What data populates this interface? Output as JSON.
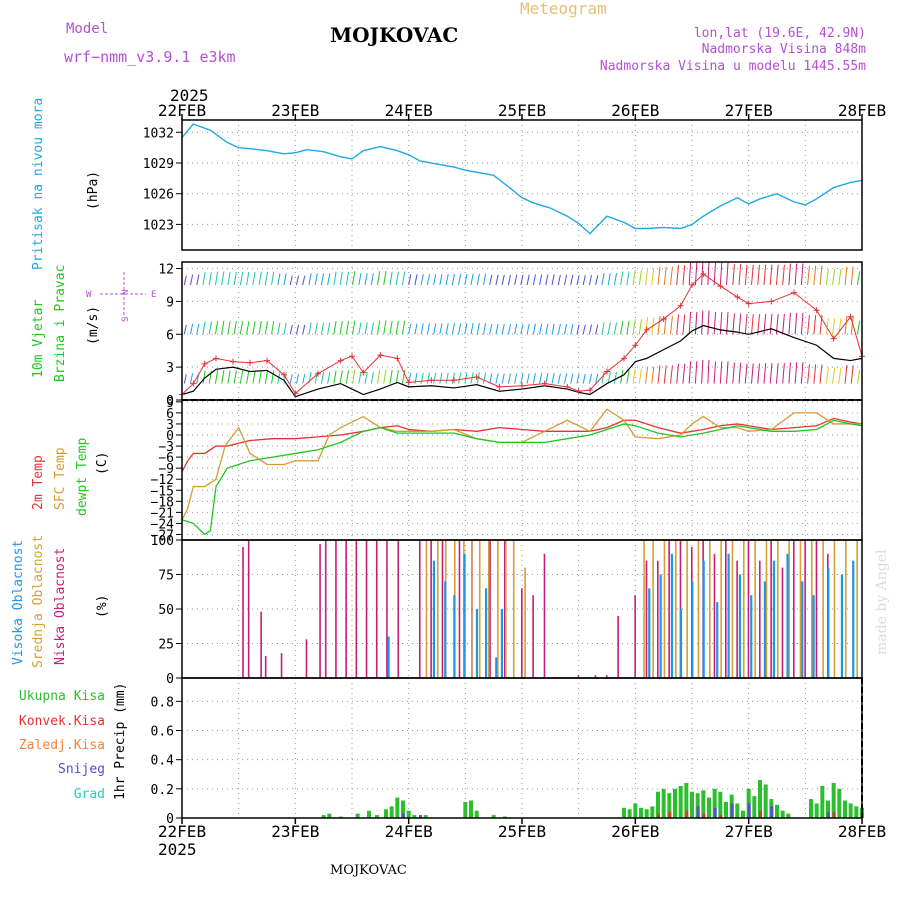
{
  "header": {
    "model_label": "Model",
    "model_name": "wrf−nmm_v3.9.1  e3km",
    "station": "MOJKOVAC",
    "meteogram": "Meteogram",
    "lonlat": "lon,lat (19.6E, 42.9N)",
    "altitude": "Nadmorska Visina 848m",
    "model_altitude": "Nadmorska Visina u modelu 1445.55m",
    "year_top": "2025",
    "year_bottom": "2025",
    "footer_station": "MOJKOVAC",
    "credit": "made by Angel"
  },
  "colors": {
    "pressure": "#1eaae6",
    "temp2m": "#e63232",
    "sfc": "#d79b32",
    "dewpt": "#1ec81e",
    "high_cloud": "#1e96e6",
    "mid_cloud": "#d7a032",
    "low_cloud": "#c81e78",
    "total_precip": "#2dbe2d",
    "conv_precip": "#e63232",
    "frozen_precip": "#f0823c",
    "snow": "#5050d2",
    "hail": "#28c8c8",
    "wind_label": "#1ec81e",
    "compass": "#b450d2"
  },
  "chart_data": [
    {
      "id": "pressure",
      "type": "line",
      "title": "Pritisak na nivou mora",
      "ylabel": "(hPa)",
      "yticks": [
        1023,
        1026,
        1029,
        1032
      ],
      "ylim": [
        1020.5,
        1033.2
      ],
      "x_unit": "days from 22FEB 00Z",
      "x": [
        0,
        0.1,
        0.25,
        0.4,
        0.5,
        0.6,
        0.75,
        0.9,
        1.0,
        1.1,
        1.25,
        1.4,
        1.5,
        1.6,
        1.75,
        1.9,
        2.0,
        2.1,
        2.25,
        2.4,
        2.5,
        2.6,
        2.75,
        2.9,
        3.0,
        3.1,
        3.25,
        3.4,
        3.5,
        3.6,
        3.75,
        3.9,
        4.0,
        4.1,
        4.25,
        4.4,
        4.5,
        4.6,
        4.75,
        4.9,
        5.0,
        5.1,
        5.25,
        5.4,
        5.5,
        5.6,
        5.75,
        5.9,
        6.0
      ],
      "values": [
        1031.5,
        1032.8,
        1032.2,
        1031.0,
        1030.5,
        1030.4,
        1030.2,
        1029.9,
        1030.0,
        1030.3,
        1030.1,
        1029.6,
        1029.4,
        1030.2,
        1030.6,
        1030.2,
        1029.8,
        1029.2,
        1028.9,
        1028.6,
        1028.3,
        1028.1,
        1027.8,
        1026.5,
        1025.6,
        1025.1,
        1024.6,
        1023.8,
        1023.1,
        1022.1,
        1023.8,
        1023.2,
        1022.6,
        1022.6,
        1022.7,
        1022.6,
        1023.0,
        1023.8,
        1024.8,
        1025.6,
        1025.0,
        1025.5,
        1026.0,
        1025.2,
        1024.9,
        1025.5,
        1026.6,
        1027.1,
        1027.3
      ]
    },
    {
      "id": "wind",
      "type": "line",
      "title": "10m Vjetar Brzina i Pravac",
      "ylabel": "(m/s)",
      "yticks": [
        0,
        3,
        6,
        9,
        12
      ],
      "ylim": [
        0,
        12.6
      ],
      "compass": {
        "n": "N",
        "s": "S",
        "e": "E",
        "w": "W"
      },
      "series": [
        {
          "name": "wind speed",
          "x": [
            0,
            0.1,
            0.2,
            0.3,
            0.45,
            0.6,
            0.75,
            0.9,
            1.0,
            1.2,
            1.4,
            1.5,
            1.6,
            1.75,
            1.9,
            2.0,
            2.2,
            2.4,
            2.6,
            2.8,
            3.0,
            3.2,
            3.4,
            3.5,
            3.6,
            3.75,
            3.9,
            4.0,
            4.1,
            4.25,
            4.4,
            4.5,
            4.6,
            4.75,
            4.9,
            5.0,
            5.2,
            5.4,
            5.6,
            5.75,
            5.9,
            6.0
          ],
          "values": [
            0.5,
            0.8,
            2.0,
            2.8,
            3.0,
            2.6,
            2.7,
            1.8,
            0.3,
            1.0,
            1.5,
            1.0,
            0.5,
            1.0,
            1.6,
            1.2,
            1.3,
            1.1,
            1.4,
            0.8,
            1.0,
            1.3,
            1.0,
            0.7,
            0.5,
            1.5,
            2.3,
            3.5,
            3.8,
            4.6,
            5.4,
            6.3,
            6.8,
            6.4,
            6.2,
            6.0,
            6.5,
            5.7,
            5.0,
            3.8,
            3.6,
            3.8
          ]
        },
        {
          "name": "wind gust",
          "x": [
            0,
            0.1,
            0.2,
            0.3,
            0.45,
            0.6,
            0.75,
            0.9,
            1.0,
            1.2,
            1.4,
            1.5,
            1.6,
            1.75,
            1.9,
            2.0,
            2.2,
            2.4,
            2.6,
            2.8,
            3.0,
            3.2,
            3.4,
            3.5,
            3.6,
            3.75,
            3.9,
            4.0,
            4.1,
            4.25,
            4.4,
            4.5,
            4.6,
            4.75,
            4.9,
            5.0,
            5.2,
            5.4,
            5.6,
            5.75,
            5.9,
            6.0
          ],
          "values": [
            0.5,
            1.5,
            3.3,
            3.8,
            3.5,
            3.4,
            3.6,
            2.3,
            0.6,
            2.4,
            3.6,
            4.0,
            2.5,
            4.1,
            3.8,
            1.6,
            1.8,
            1.8,
            2.1,
            1.2,
            1.3,
            1.5,
            1.2,
            0.8,
            0.9,
            2.6,
            3.8,
            5.0,
            6.4,
            7.4,
            8.6,
            10.5,
            11.5,
            10.4,
            9.4,
            8.8,
            9.0,
            9.8,
            8.2,
            5.6,
            7.6,
            4.0
          ]
        }
      ]
    },
    {
      "id": "temperature",
      "type": "line",
      "title": "2m Temp / SFC Temp / dewpt Temp",
      "ylabel": "(C)",
      "yticks": [
        -27,
        -24,
        -21,
        -18,
        -15,
        -12,
        -9,
        -6,
        -3,
        0,
        3,
        6,
        9
      ],
      "ylim": [
        -28.5,
        9.5
      ],
      "series": [
        {
          "name": "2m Temp",
          "x": [
            0,
            0.05,
            0.1,
            0.2,
            0.3,
            0.4,
            0.6,
            0.8,
            1.0,
            1.2,
            1.4,
            1.6,
            1.75,
            1.9,
            2.0,
            2.2,
            2.4,
            2.6,
            2.8,
            3.0,
            3.2,
            3.4,
            3.6,
            3.75,
            3.9,
            4.0,
            4.2,
            4.4,
            4.6,
            4.75,
            4.9,
            5.0,
            5.2,
            5.4,
            5.6,
            5.75,
            5.9,
            6.0
          ],
          "values": [
            -10,
            -7,
            -5,
            -5,
            -3,
            -3,
            -1.5,
            -1,
            -1,
            -0.5,
            0,
            1,
            2,
            2.5,
            1.5,
            1,
            1.5,
            1,
            2,
            1.5,
            1,
            1,
            1,
            2,
            4,
            4,
            2,
            0.5,
            1.5,
            2.5,
            3,
            2.5,
            1.5,
            2,
            2.5,
            4.5,
            3.5,
            3
          ]
        },
        {
          "name": "SFC Temp",
          "x": [
            0,
            0.05,
            0.1,
            0.2,
            0.3,
            0.38,
            0.5,
            0.6,
            0.75,
            0.9,
            1.0,
            1.2,
            1.3,
            1.4,
            1.6,
            1.75,
            1.9,
            2.0,
            2.2,
            2.4,
            2.6,
            2.8,
            3.0,
            3.2,
            3.4,
            3.6,
            3.75,
            3.9,
            4.0,
            4.2,
            4.4,
            4.5,
            4.6,
            4.75,
            4.9,
            5.0,
            5.2,
            5.4,
            5.6,
            5.75,
            5.9,
            6.0
          ],
          "values": [
            -23,
            -20,
            -14,
            -14,
            -12,
            -3,
            2,
            -5,
            -8,
            -8,
            -7,
            -7,
            0,
            2,
            5,
            2,
            1,
            1,
            1,
            1.5,
            -1,
            -2,
            -2,
            1,
            4,
            1,
            7,
            4,
            -0.5,
            -1,
            0,
            3,
            5,
            2,
            2,
            1,
            1.5,
            6,
            6,
            3,
            3,
            3
          ]
        },
        {
          "name": "dewpt Temp",
          "x": [
            0,
            0.1,
            0.2,
            0.25,
            0.3,
            0.4,
            0.6,
            0.8,
            1.0,
            1.2,
            1.4,
            1.6,
            1.75,
            1.9,
            2.0,
            2.2,
            2.4,
            2.6,
            2.8,
            3.0,
            3.2,
            3.4,
            3.6,
            3.75,
            3.9,
            4.0,
            4.2,
            4.4,
            4.6,
            4.75,
            4.9,
            5.0,
            5.2,
            5.4,
            5.6,
            5.75,
            5.9,
            6.0
          ],
          "values": [
            -23,
            -24,
            -27,
            -26,
            -14,
            -9,
            -7,
            -6,
            -5,
            -4,
            -2,
            1,
            2,
            0.5,
            0.5,
            0.5,
            0.5,
            -1,
            -2,
            -2,
            -2,
            -1,
            0,
            1.5,
            3,
            2.5,
            0.5,
            -0.5,
            0.5,
            1.5,
            2.5,
            2,
            1,
            1,
            1.5,
            4,
            3,
            2.5
          ]
        }
      ]
    },
    {
      "id": "clouds",
      "type": "bar",
      "title": "Visoka Oblacnost / Srednja Oblacnost / Niska Oblacnost",
      "ylabel": "(%)",
      "yticks": [
        0,
        25,
        50,
        75,
        100
      ],
      "ylim": [
        0,
        100
      ],
      "series": [
        {
          "name": "Niska Oblacnost",
          "x": [
            0.54,
            0.59,
            0.7,
            0.74,
            0.88,
            1.1,
            1.22,
            1.27,
            1.36,
            1.45,
            1.54,
            1.63,
            1.72,
            1.81,
            1.91,
            2.1,
            2.2,
            2.3,
            2.45,
            2.56,
            2.72,
            2.85,
            3.0,
            3.1,
            3.2,
            3.5,
            3.65,
            3.75,
            3.85,
            4.0,
            4.1,
            4.2,
            4.3,
            4.4,
            4.5,
            4.6,
            4.7,
            4.8,
            4.9,
            5.0,
            5.1,
            5.2,
            5.3,
            5.4,
            5.5,
            5.6,
            5.7
          ],
          "values": [
            95,
            100,
            48,
            16,
            18,
            28,
            97,
            100,
            100,
            100,
            100,
            100,
            100,
            100,
            100,
            100,
            100,
            100,
            100,
            100,
            100,
            100,
            65,
            60,
            90,
            2,
            2,
            2,
            45,
            60,
            85,
            85,
            100,
            100,
            95,
            100,
            90,
            100,
            85,
            100,
            85,
            100,
            80,
            100,
            100,
            100,
            90
          ]
        },
        {
          "name": "Srednja Oblacnost",
          "x": [
            2.15,
            2.25,
            2.32,
            2.4,
            2.48,
            2.55,
            2.62,
            2.7,
            2.78,
            2.85,
            2.92,
            3.02,
            4.07,
            4.15,
            4.25,
            4.35,
            4.45,
            4.55,
            4.65,
            4.75,
            4.85,
            4.95,
            5.05,
            5.15,
            5.25,
            5.35,
            5.45,
            5.55,
            5.65,
            5.75,
            5.85,
            5.95
          ],
          "values": [
            100,
            100,
            100,
            100,
            100,
            100,
            100,
            100,
            100,
            100,
            100,
            80,
            100,
            100,
            100,
            100,
            100,
            100,
            100,
            100,
            100,
            100,
            100,
            100,
            100,
            100,
            100,
            100,
            100,
            100,
            100,
            100
          ]
        },
        {
          "name": "Visoka Oblacnost",
          "x": [
            1.8,
            2.2,
            2.3,
            2.38,
            2.47,
            2.58,
            2.66,
            2.75,
            2.8,
            4.1,
            4.2,
            4.3,
            4.38,
            4.48,
            4.58,
            4.7,
            4.8,
            4.9,
            5.0,
            5.12,
            5.2,
            5.32,
            5.45,
            5.55,
            5.68,
            5.8,
            5.9
          ],
          "values": [
            30,
            85,
            70,
            60,
            90,
            50,
            65,
            15,
            50,
            65,
            75,
            90,
            50,
            70,
            85,
            55,
            90,
            75,
            60,
            70,
            85,
            90,
            70,
            60,
            80,
            75,
            85
          ]
        }
      ]
    },
    {
      "id": "precip",
      "type": "bar",
      "title": "1hr Precip",
      "ylabel": "1hr Precip (mm)",
      "yticks": [
        0,
        0.2,
        0.4,
        0.6,
        0.8
      ],
      "ylim": [
        0,
        0.96
      ],
      "series": [
        {
          "name": "Ukupna Kisa",
          "x": [
            1.25,
            1.3,
            1.4,
            1.55,
            1.65,
            1.72,
            1.8,
            1.85,
            1.9,
            1.95,
            2.0,
            2.05,
            2.15,
            2.5,
            2.55,
            2.6,
            2.75,
            2.85,
            3.9,
            3.95,
            4.0,
            4.05,
            4.1,
            4.15,
            4.2,
            4.25,
            4.3,
            4.35,
            4.4,
            4.45,
            4.5,
            4.55,
            4.6,
            4.65,
            4.7,
            4.75,
            4.8,
            4.85,
            4.9,
            4.95,
            5.0,
            5.05,
            5.1,
            5.15,
            5.2,
            5.25,
            5.3,
            5.35,
            5.55,
            5.6,
            5.65,
            5.7,
            5.75,
            5.8,
            5.85,
            5.9,
            5.95,
            6.0
          ],
          "values": [
            0.02,
            0.03,
            0.01,
            0.03,
            0.05,
            0.02,
            0.06,
            0.08,
            0.14,
            0.12,
            0.05,
            0.02,
            0.02,
            0.11,
            0.12,
            0.05,
            0.02,
            0.01,
            0.07,
            0.06,
            0.1,
            0.07,
            0.06,
            0.08,
            0.18,
            0.2,
            0.17,
            0.2,
            0.22,
            0.24,
            0.18,
            0.17,
            0.19,
            0.14,
            0.2,
            0.18,
            0.11,
            0.16,
            0.1,
            0.05,
            0.2,
            0.15,
            0.26,
            0.23,
            0.13,
            0.09,
            0.05,
            0.03,
            0.13,
            0.1,
            0.22,
            0.12,
            0.24,
            0.2,
            0.12,
            0.1,
            0.08,
            0.07
          ]
        },
        {
          "name": "Konvek.Kisa",
          "x": [
            4.2,
            4.3,
            4.45,
            4.6,
            4.75,
            5.1,
            5.75
          ],
          "values": [
            0.03,
            0.04,
            0.05,
            0.03,
            0.02,
            0.05,
            0.04
          ]
        },
        {
          "name": "Zaledj.Kisa",
          "x": [],
          "values": []
        },
        {
          "name": "Snijeg",
          "x": [
            1.95,
            2.1,
            4.55,
            4.7,
            4.85,
            5.0,
            5.2,
            5.7
          ],
          "values": [
            0.03,
            0.02,
            0.08,
            0.07,
            0.1,
            0.1,
            0.08,
            0.04
          ]
        },
        {
          "name": "Grad",
          "x": [],
          "values": []
        }
      ]
    }
  ],
  "x_axis": {
    "date_labels": [
      "22FEB",
      "23FEB",
      "24FEB",
      "25FEB",
      "26FEB",
      "27FEB",
      "28FEB"
    ]
  },
  "legends": {
    "pressure": "Pritisak na nivou mora",
    "pressure_unit": "(hPa)",
    "wind_1": "10m Vjetar",
    "wind_2": "Brzina i Pravac",
    "wind_unit": "(m/s)",
    "temp_2m": "2m Temp",
    "temp_sfc": "SFC Temp",
    "temp_dew": "dewpt Temp",
    "temp_unit": "(C)",
    "cloud_high": "Visoka Oblacnost",
    "cloud_mid": "Srednja Oblacnost",
    "cloud_low": "Niska Oblacnost",
    "cloud_unit": "(%)",
    "precip_total": "Ukupna Kisa",
    "precip_conv": "Konvek.Kisa",
    "precip_frozen": "Zaledj.Kisa",
    "precip_snow": "Snijeg",
    "precip_hail": "Grad",
    "precip_unit": "1hr Precip (mm)"
  }
}
